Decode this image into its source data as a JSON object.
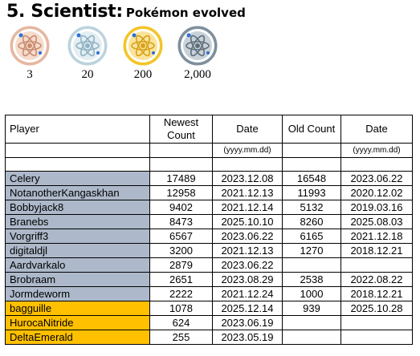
{
  "heading": {
    "title": "5. Scientist:",
    "subtitle": "Pokémon evolved"
  },
  "medals": [
    {
      "tier": "bronze",
      "icon": "atom-bronze-medal-icon",
      "count": "3",
      "ring": "#e6b7a0",
      "face": "#f6dccd",
      "atom": "#c98c6f"
    },
    {
      "tier": "silver",
      "icon": "atom-silver-medal-icon",
      "count": "20",
      "ring": "#bcd3de",
      "face": "#e4eef3",
      "atom": "#8fb2c4"
    },
    {
      "tier": "gold",
      "icon": "atom-gold-medal-icon",
      "count": "200",
      "ring": "#f2c52a",
      "face": "#fbe39a",
      "atom": "#d6a21a"
    },
    {
      "tier": "platinum",
      "icon": "atom-platinum-medal-icon",
      "count": "2,000",
      "ring": "#7f8f9c",
      "face": "#c9d2d9",
      "atom": "#5e6e7b"
    }
  ],
  "table": {
    "headers": {
      "player": "Player",
      "newest_count": "Newest Count",
      "date": "Date",
      "old_count": "Old Count",
      "old_date": "Date"
    },
    "format_hint": "(yyyy.mm.dd)",
    "rows": [
      {
        "player": "Celery",
        "newest": "17489",
        "date": "2023.12.08",
        "old": "16548",
        "old_date": "2023.06.22",
        "highlight": "blue"
      },
      {
        "player": "NotanotherKangaskhan",
        "newest": "12958",
        "date": "2021.12.13",
        "old": "11993",
        "old_date": "2020.12.02",
        "highlight": "blue"
      },
      {
        "player": "Bobbyjack8",
        "newest": "9402",
        "date": "2021.12.14",
        "old": "5132",
        "old_date": "2019.03.16",
        "highlight": "blue"
      },
      {
        "player": "Branebs",
        "newest": "8473",
        "date": "2025.10.10",
        "old": "8260",
        "old_date": "2025.08.03",
        "highlight": "blue"
      },
      {
        "player": "Vorgriff3",
        "newest": "6567",
        "date": "2023.06.22",
        "old": "6165",
        "old_date": "2021.12.18",
        "highlight": "blue"
      },
      {
        "player": "digitaldjl",
        "newest": "3200",
        "date": "2021.12.13",
        "old": "1270",
        "old_date": "2018.12.21",
        "highlight": "blue"
      },
      {
        "player": "Aardvarkalo",
        "newest": "2879",
        "date": "2023.06.22",
        "old": "",
        "old_date": "",
        "highlight": "blue"
      },
      {
        "player": "Brobraam",
        "newest": "2651",
        "date": "2023.08.29",
        "old": "2538",
        "old_date": "2022.08.22",
        "highlight": "blue"
      },
      {
        "player": "Jormdeworm",
        "newest": "2222",
        "date": "2021.12.24",
        "old": "1000",
        "old_date": "2018.12.21",
        "highlight": "blue"
      },
      {
        "player": "bagguille",
        "newest": "1078",
        "date": "2025.12.14",
        "old": "939",
        "old_date": "2025.10.28",
        "highlight": "gold"
      },
      {
        "player": "HurocaNitride",
        "newest": "624",
        "date": "2023.06.19",
        "old": "",
        "old_date": "",
        "highlight": "gold"
      },
      {
        "player": "DeltaEmerald",
        "newest": "255",
        "date": "2023.05.19",
        "old": "",
        "old_date": "",
        "highlight": "gold"
      }
    ]
  }
}
